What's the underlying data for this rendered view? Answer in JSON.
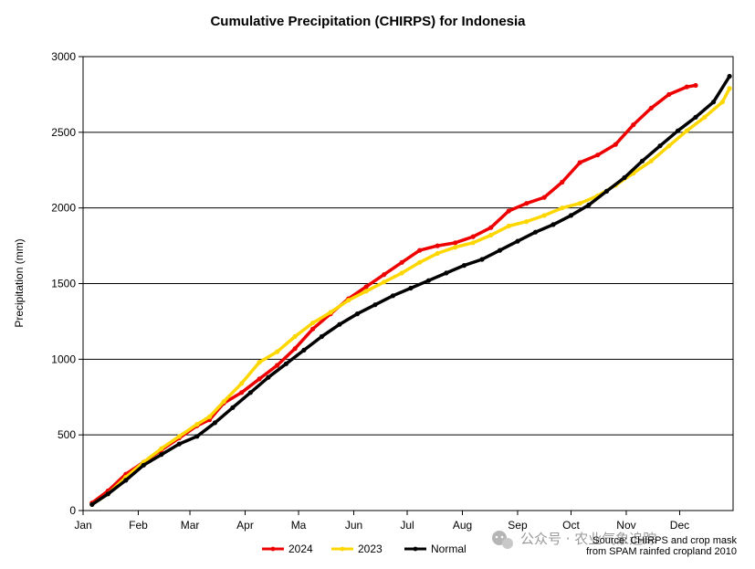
{
  "chart_data": {
    "type": "line",
    "title": "Cumulative Precipitation (CHIRPS) for Indonesia",
    "xlabel": "",
    "ylabel": "Precipitation (mm)",
    "ylim": [
      0,
      3000
    ],
    "yticks": [
      0,
      500,
      1000,
      1500,
      2000,
      2500,
      3000
    ],
    "xticks": [
      "Jan",
      "Feb",
      "Mar",
      "Apr",
      "Ma",
      "Jun",
      "Jul",
      "Aug",
      "Sep",
      "Oct",
      "Nov",
      "Dec"
    ],
    "x_unit": "day of year",
    "xlim": [
      1,
      366
    ],
    "grid": "horizontal",
    "legend_position": "bottom",
    "series": [
      {
        "name": "2024",
        "color": "#ee0000",
        "x": [
          6,
          15,
          25,
          35,
          45,
          55,
          65,
          72,
          80,
          90,
          100,
          110,
          120,
          130,
          140,
          150,
          160,
          170,
          180,
          190,
          200,
          210,
          220,
          230,
          240,
          250,
          260,
          270,
          280,
          290,
          300,
          310,
          320,
          330,
          340,
          345
        ],
        "y": [
          50,
          130,
          240,
          320,
          400,
          480,
          560,
          600,
          710,
          780,
          870,
          960,
          1070,
          1200,
          1300,
          1400,
          1480,
          1560,
          1640,
          1720,
          1750,
          1770,
          1810,
          1870,
          1980,
          2030,
          2070,
          2170,
          2300,
          2350,
          2420,
          2550,
          2660,
          2750,
          2800,
          2810
        ]
      },
      {
        "name": "2023",
        "color": "#ffd700",
        "x": [
          6,
          15,
          25,
          35,
          45,
          55,
          65,
          72,
          80,
          90,
          100,
          110,
          120,
          130,
          140,
          150,
          160,
          170,
          180,
          190,
          200,
          210,
          220,
          230,
          240,
          250,
          260,
          270,
          280,
          290,
          300,
          310,
          320,
          330,
          340,
          350,
          360,
          364
        ],
        "y": [
          40,
          110,
          220,
          320,
          410,
          490,
          570,
          620,
          720,
          840,
          980,
          1050,
          1150,
          1240,
          1310,
          1390,
          1450,
          1510,
          1570,
          1640,
          1700,
          1740,
          1770,
          1820,
          1880,
          1910,
          1950,
          2000,
          2030,
          2080,
          2150,
          2230,
          2310,
          2410,
          2510,
          2600,
          2700,
          2790
        ]
      },
      {
        "name": "Normal",
        "color": "#000000",
        "x": [
          6,
          15,
          25,
          35,
          45,
          55,
          65,
          75,
          85,
          95,
          105,
          115,
          125,
          135,
          145,
          155,
          165,
          175,
          185,
          195,
          205,
          215,
          225,
          235,
          245,
          255,
          265,
          275,
          285,
          295,
          305,
          315,
          325,
          335,
          345,
          355,
          364
        ],
        "y": [
          40,
          110,
          200,
          300,
          370,
          440,
          490,
          580,
          680,
          780,
          880,
          970,
          1060,
          1150,
          1230,
          1300,
          1360,
          1420,
          1470,
          1520,
          1570,
          1620,
          1660,
          1720,
          1780,
          1840,
          1890,
          1950,
          2020,
          2110,
          2200,
          2310,
          2410,
          2510,
          2600,
          2700,
          2870
        ]
      }
    ]
  },
  "annotations": {
    "source_line1": "Source: CHIRPS and crop mask",
    "source_line2": "from SPAM rainfed cropland 2010",
    "watermark": "公众号 · 农业气象追踪"
  },
  "icons": {
    "watermark_icon": "wechat-icon"
  }
}
